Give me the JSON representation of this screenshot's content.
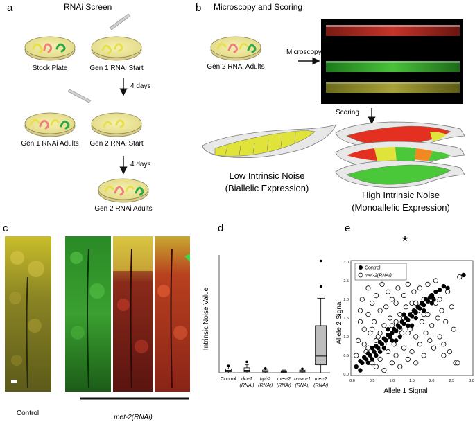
{
  "panels": {
    "a": {
      "letter": "a",
      "title": "RNAi Screen",
      "plates": [
        "Stock Plate",
        "Gen 1 RNAi Start",
        "Gen 1 RNAi Adults",
        "Gen 2 RNAi Start",
        "Gen 2 RNAi Adults"
      ],
      "interval_1": "4 days",
      "interval_2": "4 days"
    },
    "b": {
      "letter": "b",
      "title": "Microscopy and Scoring",
      "plate": "Gen 2 RNAi Adults",
      "microscopy": "Microscopy",
      "scoring": "Scoring",
      "low_title": "Low Intrinsic Noise",
      "low_sub": "(Biallelic Expression)",
      "high_title": "High Intrinsic Noise",
      "high_sub": "(Monoallelic Expression)"
    },
    "c": {
      "letter": "c",
      "control": "Control",
      "treated": "met-2(RNAi)"
    },
    "d": {
      "letter": "d",
      "ylabel": "Intrinsic Noise Value",
      "categories": [
        {
          "name": "Control",
          "sub": ""
        },
        {
          "name": "dcr-1",
          "sub": "(RNAi)"
        },
        {
          "name": "hpl-2",
          "sub": "(RNAi)"
        },
        {
          "name": "mes-2",
          "sub": "(RNAi)"
        },
        {
          "name": "nmad-1",
          "sub": "(RNAi)"
        },
        {
          "name": "met-2",
          "sub": "(RNAi)"
        }
      ]
    },
    "e": {
      "letter": "e",
      "star": "*",
      "xlabel": "Allele 1 Signal",
      "ylabel": "Allele 2 Signal",
      "legend": [
        "Control",
        "met-2(RNAi)"
      ],
      "xticks": [
        "0.0",
        "0.5",
        "1.0",
        "1.5",
        "2.0",
        "2.5",
        "3.0"
      ],
      "yticks": [
        "0.0",
        "0.5",
        "1.0",
        "1.5",
        "2.0",
        "2.5",
        "3.0"
      ]
    }
  },
  "chart_data": [
    {
      "type": "box",
      "categories": [
        "Control",
        "dcr-1 (RNAi)",
        "hpl-2 (RNAi)",
        "mes-2 (RNAi)",
        "nmad-1 (RNAi)",
        "met-2 (RNAi)"
      ],
      "ylabel": "Intrinsic Noise Value",
      "ylim": [
        0,
        0.6
      ],
      "boxes": [
        {
          "min": 0.0,
          "q1": 0.005,
          "median": 0.012,
          "q3": 0.02,
          "max": 0.03,
          "outliers": [
            0.035
          ]
        },
        {
          "min": 0.0,
          "q1": 0.005,
          "median": 0.012,
          "q3": 0.025,
          "max": 0.04,
          "outliers": [
            0.055
          ]
        },
        {
          "min": 0.0,
          "q1": 0.004,
          "median": 0.008,
          "q3": 0.014,
          "max": 0.02,
          "outliers": [
            0.022
          ]
        },
        {
          "min": 0.0,
          "q1": 0.003,
          "median": 0.006,
          "q3": 0.01,
          "max": 0.014,
          "outliers": []
        },
        {
          "min": 0.0,
          "q1": 0.004,
          "median": 0.008,
          "q3": 0.013,
          "max": 0.018,
          "outliers": [
            0.02
          ]
        },
        {
          "min": 0.0,
          "q1": 0.04,
          "median": 0.085,
          "q3": 0.24,
          "max": 0.38,
          "outliers": [
            0.57,
            0.44
          ]
        }
      ]
    },
    {
      "type": "scatter",
      "xlabel": "Allele 1 Signal",
      "ylabel": "Allele 2 Signal",
      "xlim": [
        0,
        3
      ],
      "ylim": [
        0,
        3
      ],
      "series": [
        {
          "name": "Control",
          "points": [
            [
              0.1,
              0.2
            ],
            [
              0.2,
              0.35
            ],
            [
              0.25,
              0.3
            ],
            [
              0.3,
              0.45
            ],
            [
              0.35,
              0.4
            ],
            [
              0.4,
              0.55
            ],
            [
              0.45,
              0.5
            ],
            [
              0.5,
              0.7
            ],
            [
              0.55,
              0.6
            ],
            [
              0.6,
              0.75
            ],
            [
              0.65,
              0.7
            ],
            [
              0.7,
              0.85
            ],
            [
              0.75,
              0.8
            ],
            [
              0.8,
              0.95
            ],
            [
              0.85,
              0.9
            ],
            [
              0.9,
              1.05
            ],
            [
              0.95,
              1.0
            ],
            [
              1.0,
              1.1
            ],
            [
              1.05,
              1.2
            ],
            [
              1.1,
              1.15
            ],
            [
              1.15,
              1.3
            ],
            [
              1.2,
              1.25
            ],
            [
              1.25,
              1.4
            ],
            [
              1.3,
              1.35
            ],
            [
              1.35,
              1.5
            ],
            [
              1.4,
              1.45
            ],
            [
              1.45,
              1.6
            ],
            [
              1.5,
              1.55
            ],
            [
              1.55,
              1.7
            ],
            [
              1.6,
              1.65
            ],
            [
              1.65,
              1.8
            ],
            [
              1.7,
              1.75
            ],
            [
              1.75,
              1.9
            ],
            [
              1.8,
              1.85
            ],
            [
              1.85,
              2.0
            ],
            [
              1.9,
              1.95
            ],
            [
              1.95,
              2.05
            ],
            [
              2.0,
              2.1
            ],
            [
              2.05,
              2.0
            ],
            [
              2.1,
              2.2
            ],
            [
              2.2,
              2.25
            ],
            [
              2.3,
              2.35
            ],
            [
              2.4,
              2.3
            ],
            [
              2.8,
              2.65
            ],
            [
              0.2,
              0.1
            ],
            [
              0.4,
              0.3
            ],
            [
              0.6,
              0.5
            ],
            [
              0.8,
              0.7
            ],
            [
              1.0,
              0.9
            ],
            [
              1.2,
              1.0
            ],
            [
              1.4,
              1.3
            ],
            [
              1.6,
              1.5
            ],
            [
              1.8,
              1.7
            ],
            [
              2.0,
              1.9
            ],
            [
              1.3,
              1.6
            ],
            [
              1.5,
              1.3
            ],
            [
              1.1,
              0.9
            ],
            [
              0.9,
              1.2
            ],
            [
              0.7,
              0.6
            ],
            [
              0.5,
              0.4
            ]
          ]
        },
        {
          "name": "met-2(RNAi)",
          "points": [
            [
              0.1,
              0.5
            ],
            [
              0.15,
              0.9
            ],
            [
              0.2,
              1.4
            ],
            [
              0.2,
              1.7
            ],
            [
              0.25,
              2.0
            ],
            [
              0.3,
              1.2
            ],
            [
              0.35,
              0.6
            ],
            [
              0.4,
              1.6
            ],
            [
              0.4,
              2.3
            ],
            [
              0.45,
              1.1
            ],
            [
              0.5,
              0.3
            ],
            [
              0.5,
              1.9
            ],
            [
              0.55,
              1.4
            ],
            [
              0.6,
              0.2
            ],
            [
              0.6,
              2.1
            ],
            [
              0.65,
              1.0
            ],
            [
              0.7,
              1.7
            ],
            [
              0.7,
              0.4
            ],
            [
              0.75,
              2.4
            ],
            [
              0.8,
              1.3
            ],
            [
              0.8,
              0.1
            ],
            [
              0.85,
              1.8
            ],
            [
              0.9,
              0.6
            ],
            [
              0.9,
              2.2
            ],
            [
              0.95,
              1.5
            ],
            [
              1.0,
              0.3
            ],
            [
              1.0,
              2.0
            ],
            [
              1.05,
              0.8
            ],
            [
              1.1,
              1.9
            ],
            [
              1.1,
              0.5
            ],
            [
              1.15,
              2.3
            ],
            [
              1.2,
              1.6
            ],
            [
              1.2,
              0.2
            ],
            [
              1.25,
              1.1
            ],
            [
              1.3,
              2.1
            ],
            [
              1.3,
              0.7
            ],
            [
              1.35,
              1.8
            ],
            [
              1.4,
              0.4
            ],
            [
              1.4,
              2.4
            ],
            [
              1.45,
              1.2
            ],
            [
              1.5,
              1.9
            ],
            [
              1.5,
              0.6
            ],
            [
              1.55,
              2.2
            ],
            [
              1.6,
              1.0
            ],
            [
              1.6,
              0.3
            ],
            [
              1.65,
              1.7
            ],
            [
              1.7,
              2.3
            ],
            [
              1.7,
              0.8
            ],
            [
              1.75,
              1.4
            ],
            [
              1.8,
              2.0
            ],
            [
              1.8,
              0.5
            ],
            [
              1.85,
              1.1
            ],
            [
              1.9,
              2.4
            ],
            [
              1.9,
              1.6
            ],
            [
              1.95,
              0.9
            ],
            [
              2.0,
              2.1
            ],
            [
              2.0,
              1.3
            ],
            [
              2.05,
              0.7
            ],
            [
              2.1,
              1.9
            ],
            [
              2.1,
              2.5
            ],
            [
              2.15,
              1.5
            ],
            [
              2.2,
              1.0
            ],
            [
              2.2,
              2.0
            ],
            [
              2.25,
              1.7
            ],
            [
              2.3,
              0.8
            ],
            [
              2.35,
              1.4
            ],
            [
              2.4,
              2.2
            ],
            [
              2.45,
              0.6
            ],
            [
              2.5,
              1.8
            ],
            [
              2.55,
              1.2
            ],
            [
              2.6,
              0.3
            ],
            [
              2.65,
              0.3
            ],
            [
              2.7,
              2.6
            ],
            [
              2.3,
              0.5
            ],
            [
              0.3,
              0.8
            ],
            [
              0.5,
              1.2
            ],
            [
              0.7,
              1.1
            ],
            [
              0.9,
              1.0
            ],
            [
              1.1,
              1.4
            ],
            [
              1.3,
              1.5
            ],
            [
              1.5,
              1.6
            ],
            [
              1.7,
              1.8
            ],
            [
              1.2,
              1.2
            ],
            [
              0.8,
              0.8
            ],
            [
              0.6,
              0.9
            ],
            [
              0.4,
              0.7
            ],
            [
              1.0,
              1.3
            ],
            [
              1.4,
              1.1
            ],
            [
              1.6,
              1.9
            ],
            [
              1.8,
              1.6
            ]
          ]
        }
      ]
    }
  ]
}
